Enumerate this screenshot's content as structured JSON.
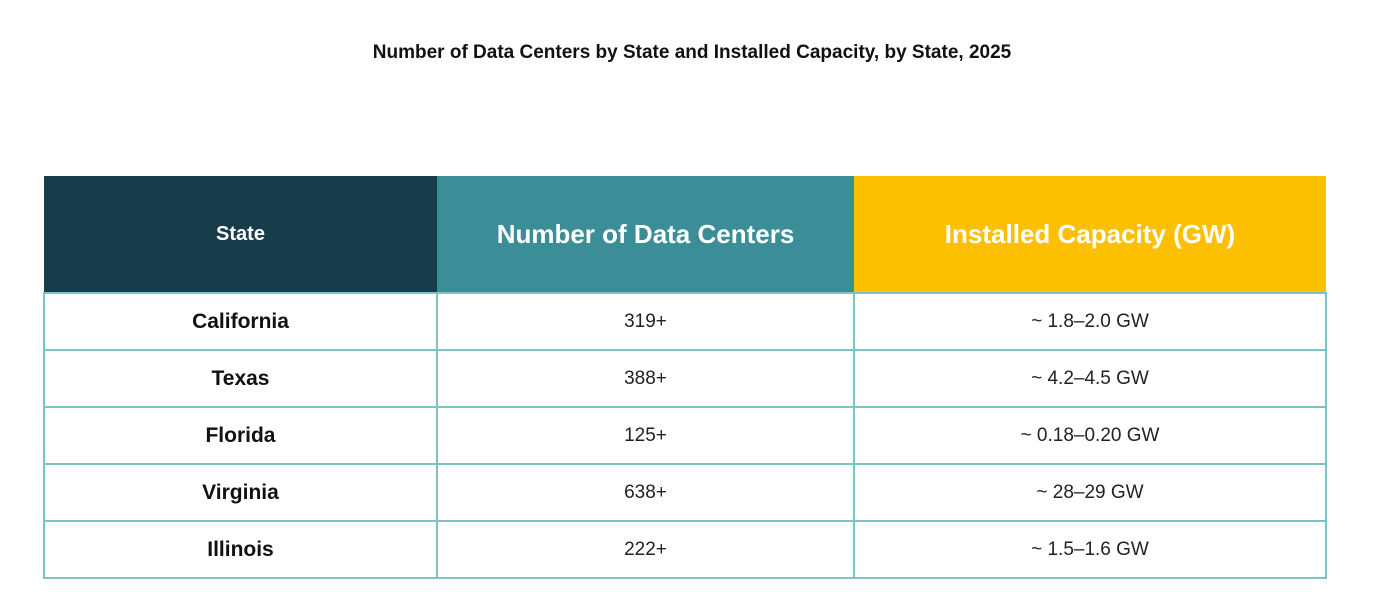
{
  "chart_data": {
    "type": "table",
    "title": "Number of Data Centers by State and Installed Capacity, by State, 2025",
    "columns": [
      "State",
      "Number of Data Centers",
      "Installed Capacity (GW)"
    ],
    "rows": [
      [
        "California",
        "319+",
        "~ 1.8–2.0 GW"
      ],
      [
        "Texas",
        "388+",
        "~ 4.2–4.5 GW"
      ],
      [
        "Florida",
        "125+",
        "~ 0.18–0.20 GW"
      ],
      [
        "Virginia",
        "638+",
        "~ 28–29 GW"
      ],
      [
        "Illinois",
        "222+",
        "~ 1.5–1.6 GW"
      ]
    ],
    "header_colors": [
      "#183d4a",
      "#3b8d98",
      "#fcc000"
    ],
    "border_color": "#7cc4c4"
  }
}
